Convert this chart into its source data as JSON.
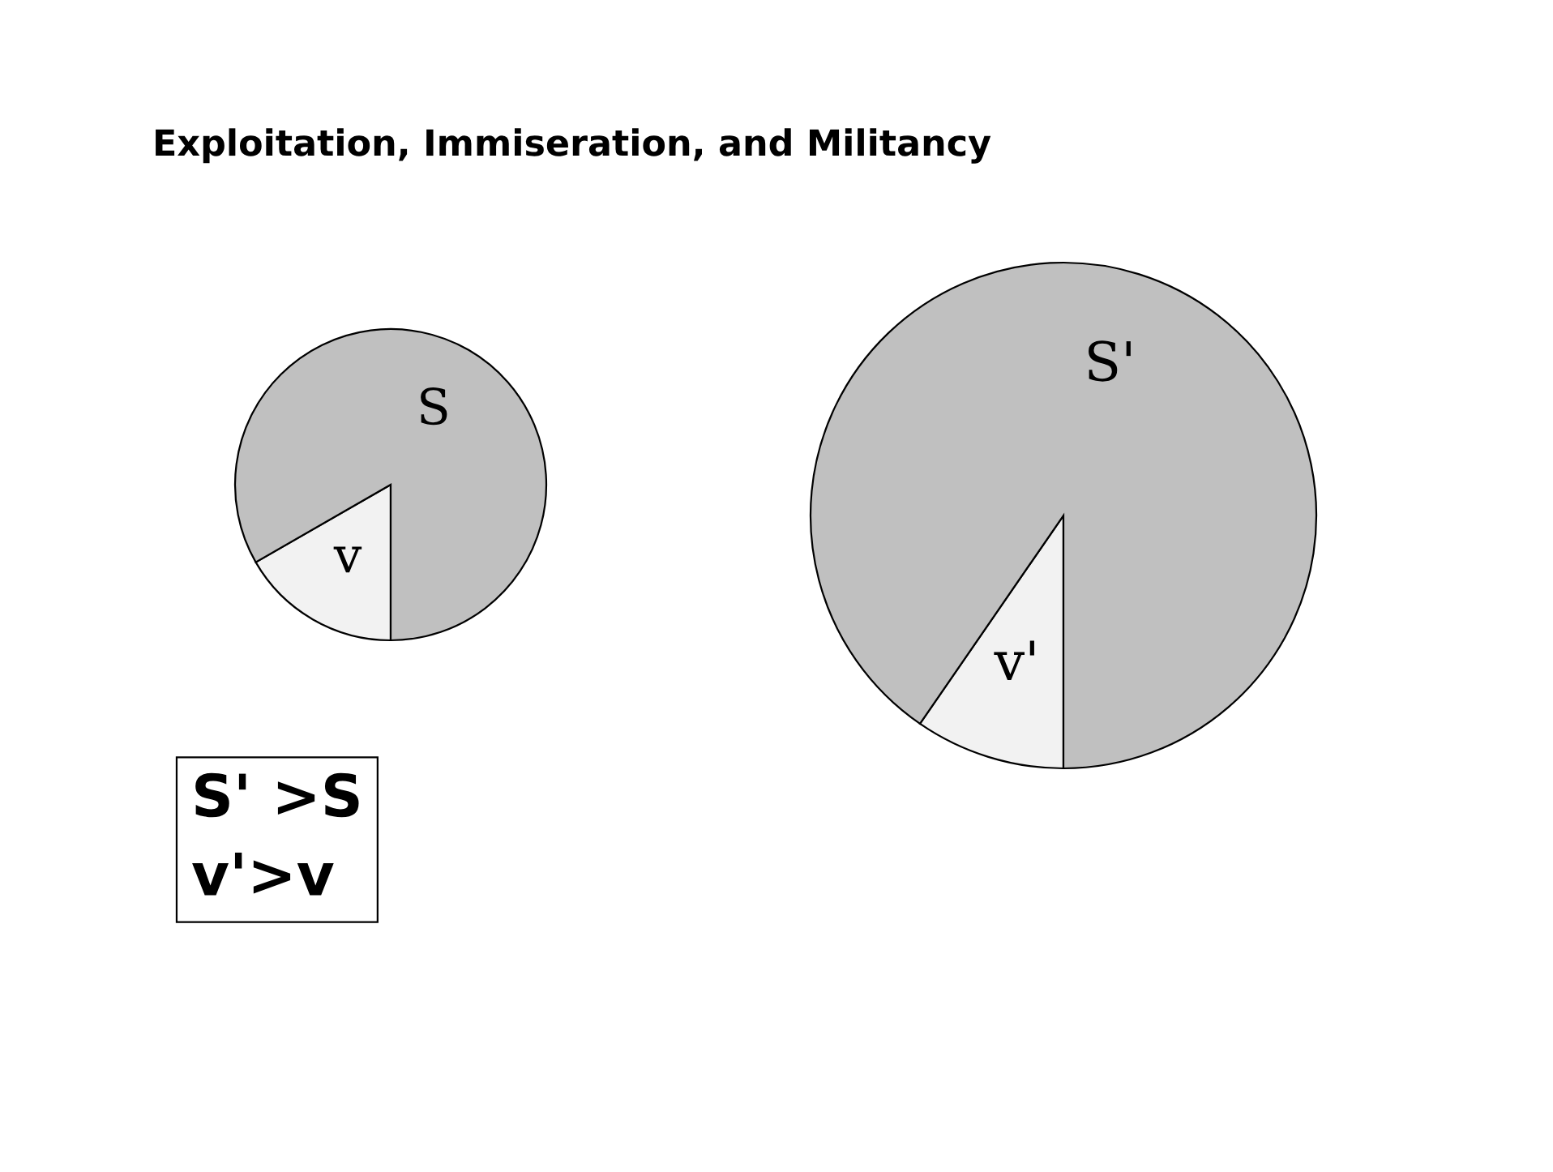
{
  "chart_data": [
    {
      "type": "pie",
      "title": "Exploitation, Immiseration, and Militancy",
      "categories": [
        "v",
        "S"
      ],
      "values": [
        16.7,
        83.3
      ],
      "colors": [
        "#f2f2f2",
        "#c0c0c0"
      ],
      "annotations": [
        "S' >S\nv'>v"
      ]
    },
    {
      "type": "pie",
      "categories": [
        "v'",
        "S'"
      ],
      "values": [
        9.6,
        90.4
      ],
      "colors": [
        "#f2f2f2",
        "#c0c0c0"
      ]
    }
  ]
}
